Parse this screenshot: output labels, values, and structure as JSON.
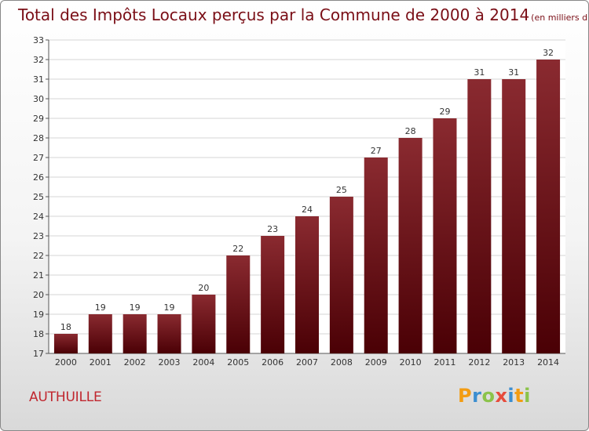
{
  "header": {
    "title": "Total des Impôts Locaux perçus par la Commune de 2000 à 2014",
    "unit": "(en milliers d'€)"
  },
  "footer": {
    "commune": "AUTHUILLE",
    "logo": "Proxiti"
  },
  "colors": {
    "title": "#7a0e16",
    "bar_top": "#8a2a30",
    "bar_bottom": "#4a0005",
    "commune": "#c0262e",
    "logo_letters": [
      "#f39c12",
      "#3b8ed0",
      "#8bc34a",
      "#e74c3c",
      "#3b8ed0",
      "#f39c12",
      "#8bc34a"
    ]
  },
  "chart_data": {
    "type": "bar",
    "title": "Total des Impôts Locaux perçus par la Commune de 2000 à 2014",
    "xlabel": "",
    "ylabel": "",
    "categories": [
      "2000",
      "2001",
      "2002",
      "2003",
      "2004",
      "2005",
      "2006",
      "2007",
      "2008",
      "2009",
      "2010",
      "2011",
      "2012",
      "2013",
      "2014"
    ],
    "values": [
      18,
      19,
      19,
      19,
      20,
      22,
      23,
      24,
      25,
      27,
      28,
      29,
      31,
      31,
      32
    ],
    "ylim": [
      17,
      33
    ],
    "yticks": [
      17,
      18,
      19,
      20,
      21,
      22,
      23,
      24,
      25,
      26,
      27,
      28,
      29,
      30,
      31,
      32,
      33
    ],
    "grid": true,
    "legend": "none"
  }
}
